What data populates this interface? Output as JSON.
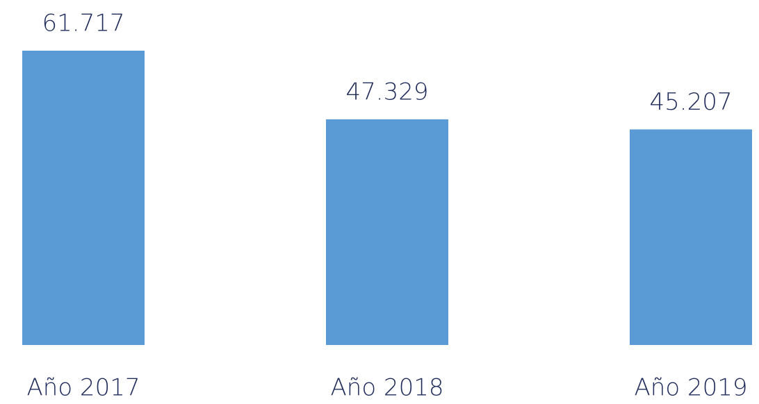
{
  "chart_data": {
    "type": "bar",
    "categories": [
      "Año 2017",
      "Año 2018",
      "Año 2019"
    ],
    "values": [
      61717,
      47329,
      45207
    ],
    "value_labels": [
      "61.717",
      "47.329",
      "45.207"
    ],
    "color": "#5b9bd5"
  }
}
